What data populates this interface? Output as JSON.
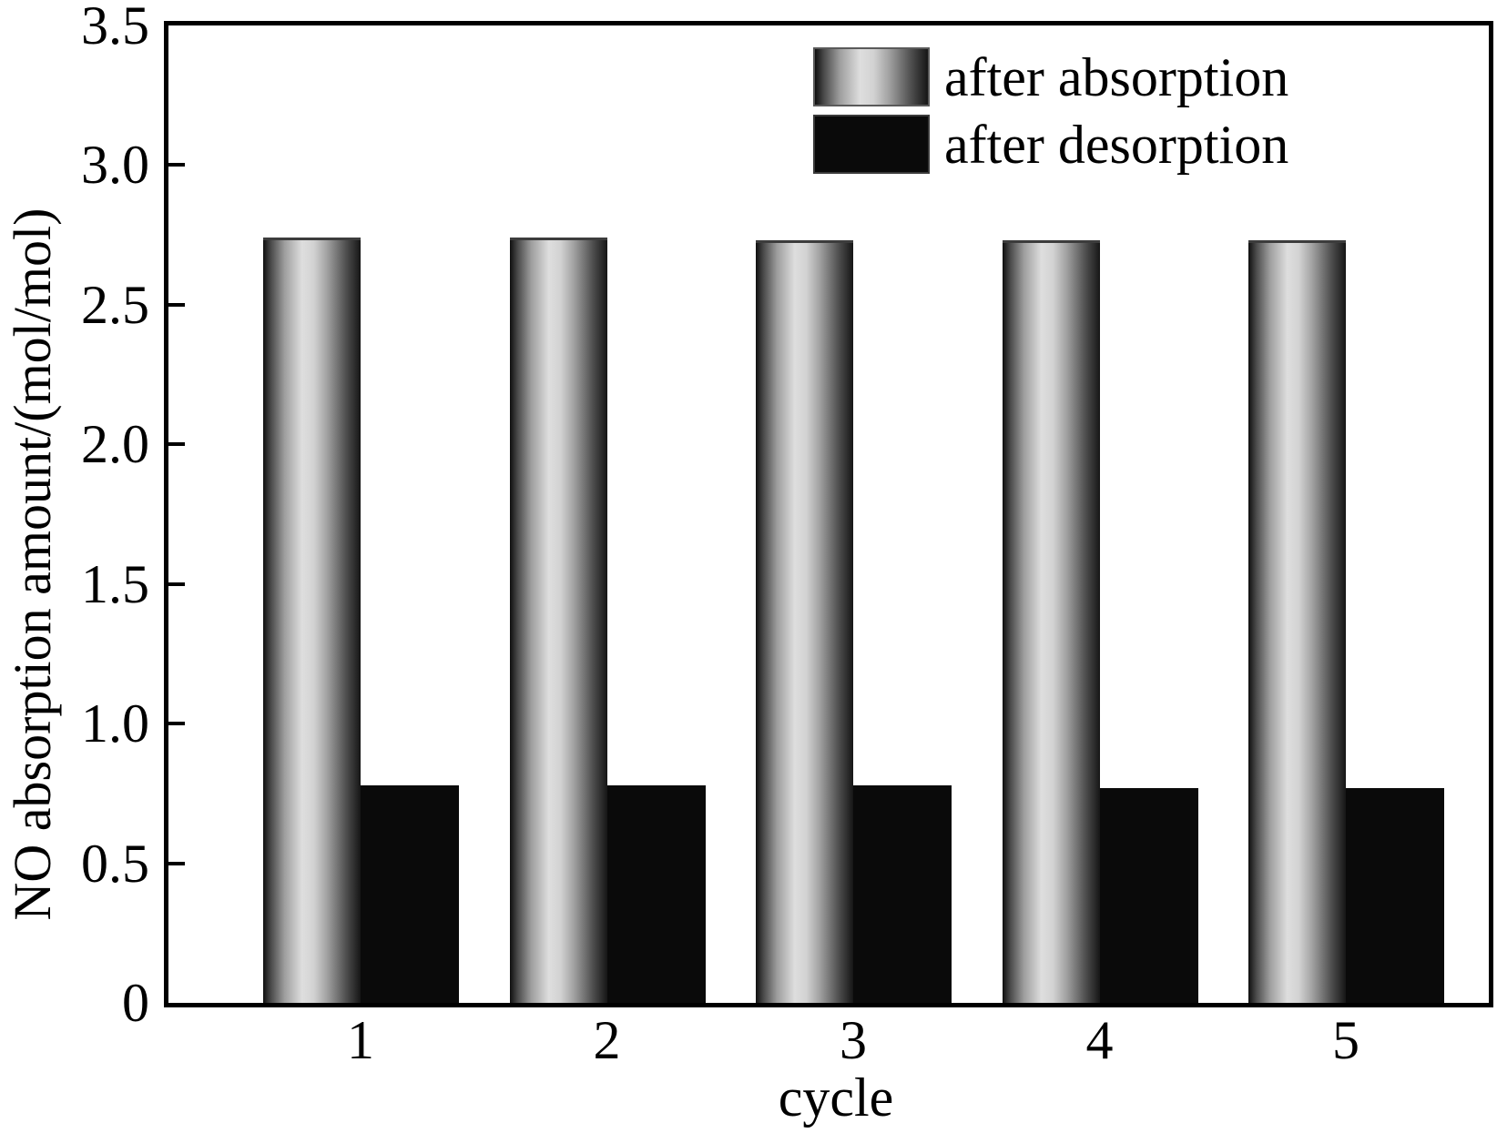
{
  "chart_data": {
    "type": "bar",
    "title": "",
    "xlabel": "cycle",
    "ylabel": "NO absorption amount/(mol/mol)",
    "categories": [
      "1",
      "2",
      "3",
      "4",
      "5"
    ],
    "series": [
      {
        "name": "after absorption",
        "style": "gray-gradient",
        "values": [
          2.74,
          2.74,
          2.73,
          2.73,
          2.73
        ]
      },
      {
        "name": "after desorption",
        "style": "solid-black",
        "values": [
          0.78,
          0.78,
          0.78,
          0.77,
          0.77
        ]
      }
    ],
    "ylim": [
      0,
      3.5
    ],
    "ytick_step": 0.5,
    "ytick_labels": [
      "3.5",
      "3.0",
      "2.5",
      "2.0",
      "1.5",
      "1.0",
      "0.5",
      "0"
    ],
    "grid": false,
    "legend_position": "top-inside",
    "colors": {
      "bar_black": "#0a0a0a",
      "bar_gray_light": "#dedede",
      "bar_gray_dark": "#101010",
      "axis": "#000000"
    }
  }
}
